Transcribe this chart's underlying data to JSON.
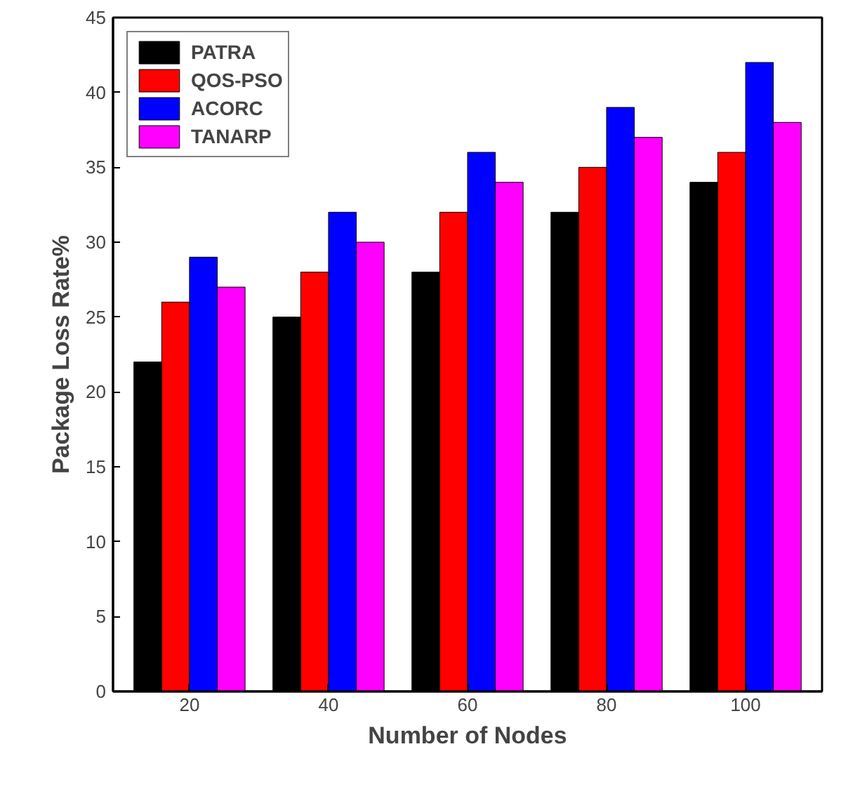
{
  "chart_data": {
    "type": "bar",
    "xlabel": "Number of Nodes",
    "ylabel": "Package Loss Rate%",
    "categories": [
      "20",
      "40",
      "60",
      "80",
      "100"
    ],
    "series": [
      {
        "name": "PATRA",
        "color": "#000000",
        "values": [
          22,
          25,
          28,
          32,
          34
        ]
      },
      {
        "name": "QOS-PSO",
        "color": "#ff0000",
        "values": [
          26,
          28,
          32,
          35,
          36
        ]
      },
      {
        "name": "ACORC",
        "color": "#0000ff",
        "values": [
          29,
          32,
          36,
          39,
          42
        ]
      },
      {
        "name": "TANARP",
        "color": "#ff00ff",
        "values": [
          27,
          30,
          34,
          37,
          38
        ]
      }
    ],
    "ylim": [
      0,
      45
    ],
    "yticks": [
      0,
      5,
      10,
      15,
      20,
      25,
      30,
      35,
      40,
      45
    ],
    "grid": false,
    "legend": "top left"
  }
}
